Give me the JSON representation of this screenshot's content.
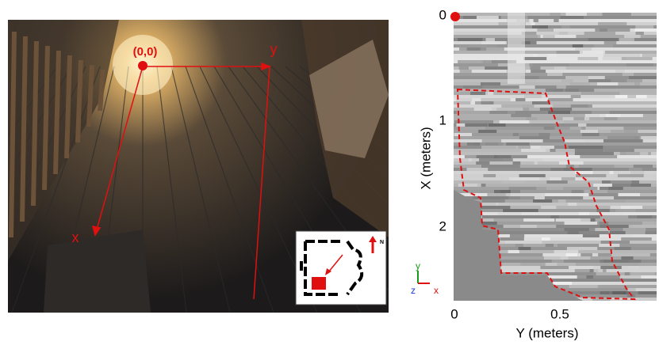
{
  "photo": {
    "origin_label": "(0,0)",
    "y_label": "y",
    "x_label": "x"
  },
  "inset": {
    "north_label": "N"
  },
  "radar": {
    "x_axis": {
      "label": "X (meters)",
      "tick_labels": [
        "0",
        "1",
        "2"
      ]
    },
    "y_axis": {
      "label": "Y (meters)",
      "tick_labels": [
        "0",
        "0.5"
      ]
    },
    "triad": {
      "y": "y",
      "z": "z",
      "x": "x"
    }
  }
}
